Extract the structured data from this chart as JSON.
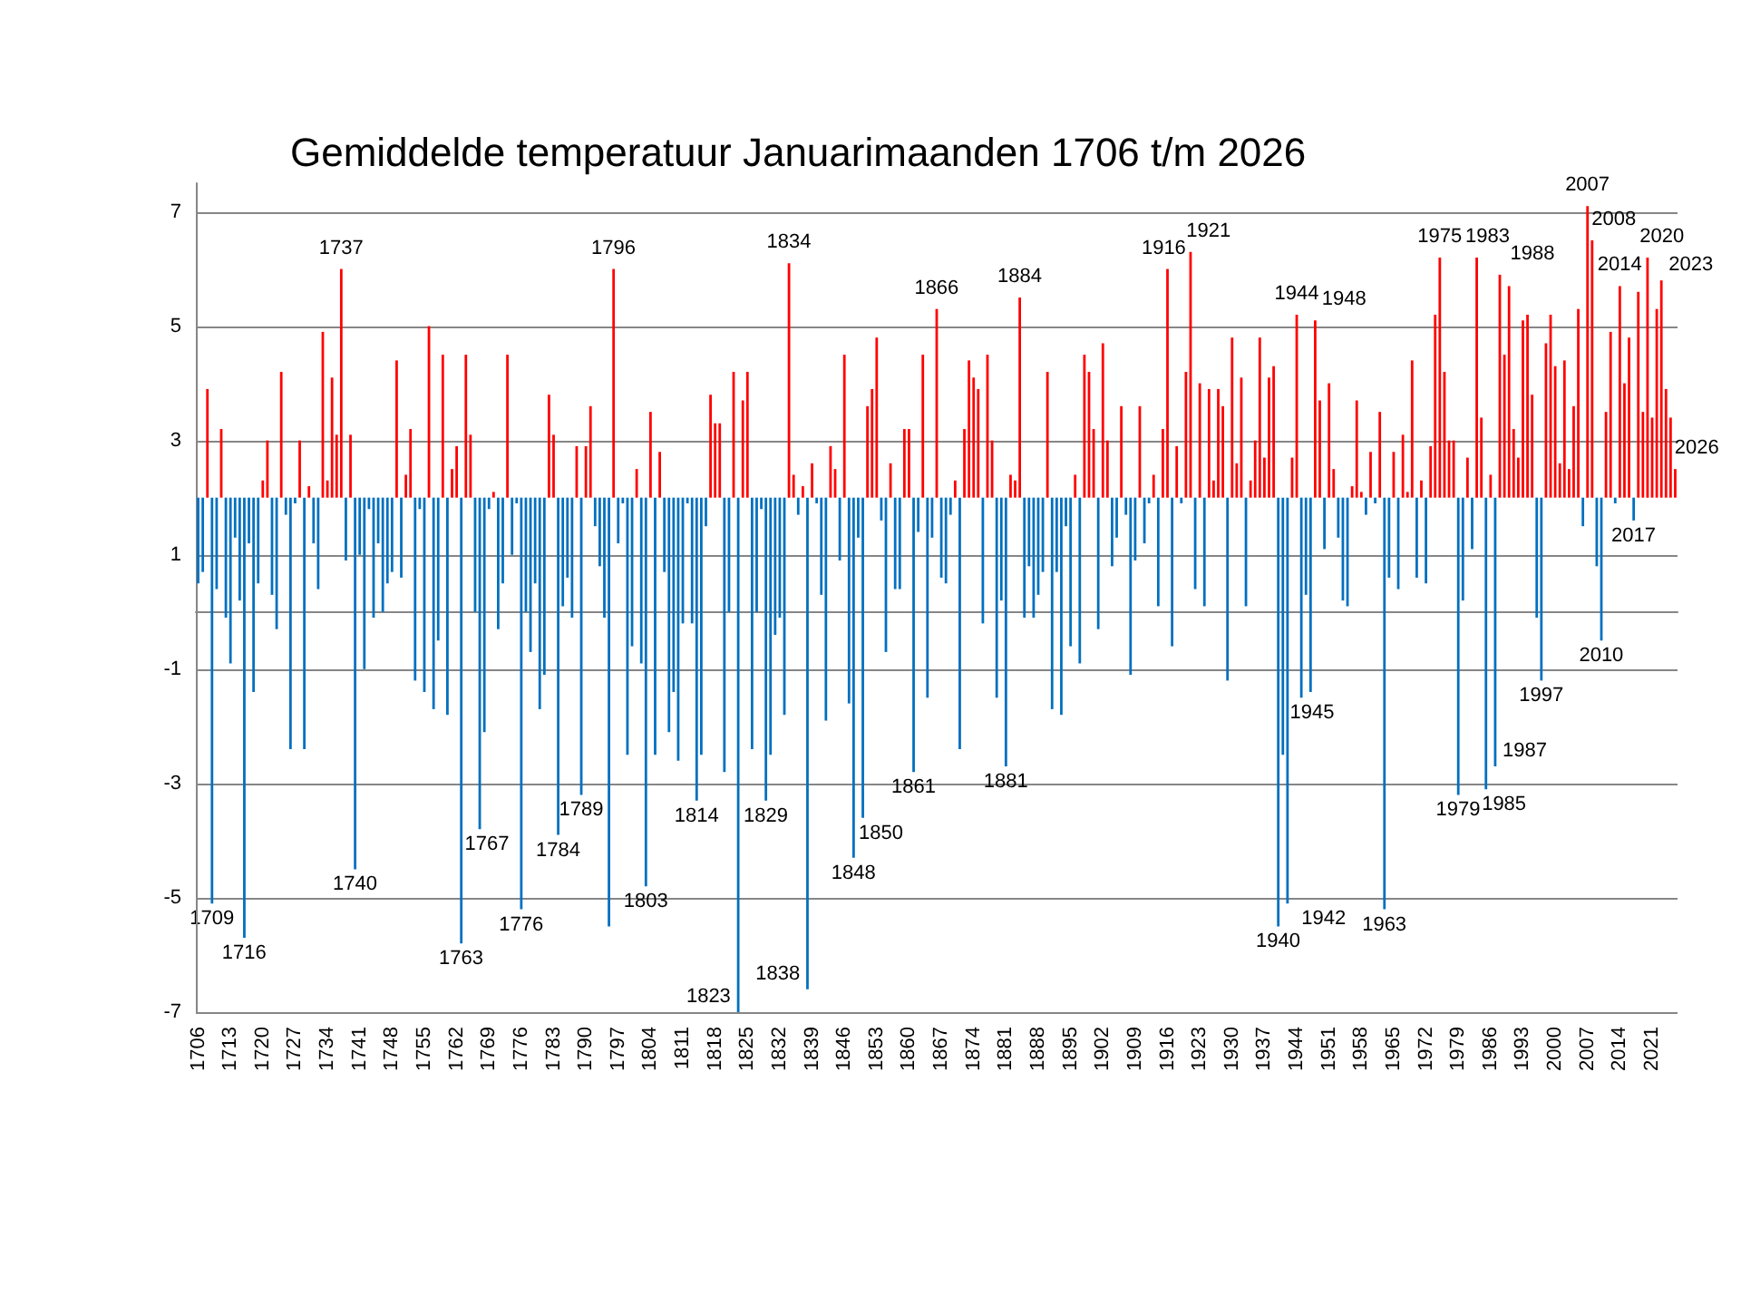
{
  "chart_data": {
    "type": "bar",
    "title": "Gemiddelde temperatuur Januarimaanden 1706 t/m 2026",
    "x": [
      1706,
      1707,
      1708,
      1709,
      1710,
      1711,
      1712,
      1713,
      1714,
      1715,
      1716,
      1717,
      1718,
      1719,
      1720,
      1721,
      1722,
      1723,
      1724,
      1725,
      1726,
      1727,
      1728,
      1729,
      1730,
      1731,
      1732,
      1733,
      1734,
      1735,
      1736,
      1737,
      1738,
      1739,
      1740,
      1741,
      1742,
      1743,
      1744,
      1745,
      1746,
      1747,
      1748,
      1749,
      1750,
      1751,
      1752,
      1753,
      1754,
      1755,
      1756,
      1757,
      1758,
      1759,
      1760,
      1761,
      1762,
      1763,
      1764,
      1765,
      1766,
      1767,
      1768,
      1769,
      1770,
      1771,
      1772,
      1773,
      1774,
      1775,
      1776,
      1777,
      1778,
      1779,
      1780,
      1781,
      1782,
      1783,
      1784,
      1785,
      1786,
      1787,
      1788,
      1789,
      1790,
      1791,
      1792,
      1793,
      1794,
      1795,
      1796,
      1797,
      1798,
      1799,
      1800,
      1801,
      1802,
      1803,
      1804,
      1805,
      1806,
      1807,
      1808,
      1809,
      1810,
      1811,
      1812,
      1813,
      1814,
      1815,
      1816,
      1817,
      1818,
      1819,
      1820,
      1821,
      1822,
      1823,
      1824,
      1825,
      1826,
      1827,
      1828,
      1829,
      1830,
      1831,
      1832,
      1833,
      1834,
      1835,
      1836,
      1837,
      1838,
      1839,
      1840,
      1841,
      1842,
      1843,
      1844,
      1845,
      1846,
      1847,
      1848,
      1849,
      1850,
      1851,
      1852,
      1853,
      1854,
      1855,
      1856,
      1857,
      1858,
      1859,
      1860,
      1861,
      1862,
      1863,
      1864,
      1865,
      1866,
      1867,
      1868,
      1869,
      1870,
      1871,
      1872,
      1873,
      1874,
      1875,
      1876,
      1877,
      1878,
      1879,
      1880,
      1881,
      1882,
      1883,
      1884,
      1885,
      1886,
      1887,
      1888,
      1889,
      1890,
      1891,
      1892,
      1893,
      1894,
      1895,
      1896,
      1897,
      1898,
      1899,
      1900,
      1901,
      1902,
      1903,
      1904,
      1905,
      1906,
      1907,
      1908,
      1909,
      1910,
      1911,
      1912,
      1913,
      1914,
      1915,
      1916,
      1917,
      1918,
      1919,
      1920,
      1921,
      1922,
      1923,
      1924,
      1925,
      1926,
      1927,
      1928,
      1929,
      1930,
      1931,
      1932,
      1933,
      1934,
      1935,
      1936,
      1937,
      1938,
      1939,
      1940,
      1941,
      1942,
      1943,
      1944,
      1945,
      1946,
      1947,
      1948,
      1949,
      1950,
      1951,
      1952,
      1953,
      1954,
      1955,
      1956,
      1957,
      1958,
      1959,
      1960,
      1961,
      1962,
      1963,
      1964,
      1965,
      1966,
      1967,
      1968,
      1969,
      1970,
      1971,
      1972,
      1973,
      1974,
      1975,
      1976,
      1977,
      1978,
      1979,
      1980,
      1981,
      1982,
      1983,
      1984,
      1985,
      1986,
      1987,
      1988,
      1989,
      1990,
      1991,
      1992,
      1993,
      1994,
      1995,
      1996,
      1997,
      1998,
      1999,
      2000,
      2001,
      2002,
      2003,
      2004,
      2005,
      2006,
      2007,
      2008,
      2009,
      2010,
      2011,
      2012,
      2013,
      2014,
      2015,
      2016,
      2017,
      2018,
      2019,
      2020,
      2021,
      2022,
      2023,
      2024,
      2025,
      2026
    ],
    "base": [
      2,
      2,
      2,
      2,
      2,
      2,
      2,
      2,
      2,
      2,
      2,
      2,
      2,
      2,
      2,
      2,
      2,
      2,
      2,
      2,
      2,
      2,
      2,
      2,
      2,
      2,
      2,
      2,
      2,
      2,
      2,
      2,
      2,
      2,
      2,
      2,
      2,
      2,
      2,
      2,
      2,
      2,
      2,
      2,
      2,
      2,
      2,
      2,
      2,
      2,
      2,
      2,
      2,
      2,
      2,
      2,
      2,
      2,
      2,
      2,
      2,
      2,
      2,
      2,
      2,
      2,
      2,
      2,
      2,
      2,
      2,
      2,
      2,
      2,
      2,
      2,
      2,
      2,
      2,
      2,
      2,
      2,
      2,
      2,
      2,
      2,
      2,
      2,
      2,
      2,
      2,
      2,
      2,
      2,
      2,
      2,
      2,
      2,
      2,
      2,
      2,
      2,
      2,
      2,
      2,
      2,
      2,
      2,
      2,
      2,
      2,
      2,
      2,
      2,
      2,
      2,
      2,
      2,
      2,
      2,
      2,
      2,
      2,
      2,
      2,
      2,
      2,
      2,
      2,
      2,
      2,
      2,
      2,
      2,
      2,
      2,
      2,
      2,
      2,
      2,
      2,
      2,
      2,
      2,
      2,
      2,
      2,
      2,
      2,
      2,
      2,
      2,
      2,
      2,
      2,
      2,
      2,
      2,
      2,
      2,
      2,
      2,
      2,
      2,
      2,
      2,
      2,
      2,
      2,
      2,
      2,
      2,
      2,
      2,
      2,
      2,
      2,
      2,
      2,
      2,
      2,
      2,
      2,
      2,
      2,
      2,
      2,
      2,
      2,
      2,
      2,
      2,
      2,
      2,
      2,
      2,
      2,
      2,
      2,
      2,
      2,
      2,
      2,
      2,
      2,
      2,
      2,
      2,
      2,
      2,
      2,
      2,
      2,
      2,
      2,
      2,
      2,
      2,
      2,
      2,
      2,
      2,
      2,
      2,
      2,
      2,
      2,
      2,
      2,
      2,
      2,
      2,
      2,
      2,
      2,
      2,
      2,
      2,
      2,
      2,
      2,
      2,
      2,
      2,
      2,
      2,
      2,
      2,
      2,
      2,
      2,
      2,
      2,
      2,
      2,
      2,
      2,
      2,
      2,
      2,
      2,
      2,
      2,
      2,
      2,
      2,
      2,
      2,
      2,
      2,
      2,
      2,
      2,
      2,
      2,
      2,
      2,
      2,
      2,
      2,
      2,
      2,
      2,
      2,
      2,
      2,
      2,
      2,
      2,
      2,
      2,
      2,
      2,
      2,
      2,
      2,
      2,
      2,
      2,
      2,
      2,
      2,
      2,
      2,
      2,
      2,
      2,
      2,
      2,
      2,
      2,
      2,
      2,
      2,
      2,
      2,
      2,
      2,
      2,
      2,
      2
    ],
    "values": [
      -1.5,
      -1.3,
      1.9,
      -7.1,
      -1.6,
      1.2,
      -2.1,
      -2.9,
      -0.7,
      -1.8,
      -7.7,
      -0.8,
      -3.4,
      -1.5,
      0.3,
      1.0,
      -1.7,
      -2.3,
      2.2,
      -0.3,
      -4.4,
      -0.1,
      1.0,
      -4.4,
      0.2,
      -0.8,
      -1.6,
      2.9,
      0.3,
      2.1,
      1.1,
      4.0,
      -1.1,
      1.1,
      -6.5,
      -1.0,
      -3.0,
      -0.2,
      -2.1,
      -0.8,
      -2.0,
      -1.5,
      -1.3,
      2.4,
      -1.4,
      0.4,
      1.2,
      -3.2,
      -0.2,
      -3.4,
      3.0,
      -3.7,
      -2.5,
      2.5,
      -3.8,
      0.5,
      0.9,
      -7.8,
      2.5,
      1.1,
      -2.0,
      -5.8,
      -4.1,
      -0.2,
      0.1,
      -2.3,
      -1.5,
      2.5,
      -1.0,
      -0.1,
      -7.2,
      -2.0,
      -2.7,
      -1.5,
      -3.7,
      -3.1,
      1.8,
      1.1,
      -5.9,
      -1.9,
      -1.4,
      -2.1,
      0.9,
      -5.2,
      0.9,
      1.6,
      -0.5,
      -1.2,
      -2.1,
      -7.5,
      4.0,
      -0.8,
      -0.1,
      -4.5,
      -2.6,
      0.5,
      -2.9,
      -6.8,
      1.5,
      -4.5,
      0.8,
      -1.3,
      -4.1,
      -3.4,
      -4.6,
      -2.2,
      -0.1,
      -2.2,
      -5.3,
      -4.5,
      -0.5,
      1.8,
      1.3,
      1.3,
      -4.8,
      -2.0,
      2.2,
      -9.0,
      1.7,
      2.2,
      -4.4,
      -2.0,
      -0.2,
      -5.3,
      -4.5,
      -2.4,
      -2.1,
      -3.8,
      4.1,
      0.4,
      -0.3,
      0.2,
      -8.6,
      0.6,
      -0.1,
      -1.7,
      -3.9,
      0.9,
      0.5,
      -1.1,
      2.5,
      -3.6,
      -6.3,
      -0.7,
      -5.6,
      1.6,
      1.9,
      2.8,
      -0.4,
      -2.7,
      0.6,
      -1.6,
      -1.6,
      1.2,
      1.2,
      -4.8,
      -0.6,
      2.5,
      -3.5,
      -0.7,
      3.3,
      -1.4,
      -1.5,
      -0.3,
      0.3,
      -4.4,
      1.2,
      2.4,
      2.1,
      1.9,
      -2.2,
      2.5,
      1.0,
      -3.5,
      -1.8,
      -4.7,
      0.4,
      0.3,
      3.5,
      -2.1,
      -1.2,
      -2.1,
      -1.7,
      -1.3,
      2.2,
      -3.7,
      -1.3,
      -3.8,
      -0.5,
      -2.6,
      0.4,
      -2.9,
      2.5,
      2.2,
      1.2,
      -2.3,
      2.7,
      1.0,
      -1.2,
      -0.7,
      1.6,
      -0.3,
      -3.1,
      -1.1,
      1.6,
      -0.8,
      -0.1,
      0.4,
      -1.9,
      1.2,
      4.0,
      -2.6,
      0.9,
      -0.1,
      2.2,
      4.3,
      -1.6,
      2.0,
      -1.9,
      1.9,
      0.3,
      1.9,
      1.6,
      -3.2,
      2.8,
      0.6,
      2.1,
      -1.9,
      0.3,
      1.0,
      2.8,
      0.7,
      2.1,
      2.3,
      -7.5,
      -4.5,
      -7.1,
      0.7,
      3.2,
      -3.5,
      -1.7,
      -3.4,
      3.1,
      1.7,
      -0.9,
      2.0,
      0.5,
      -0.7,
      -1.8,
      -1.9,
      0.2,
      1.7,
      0.1,
      -0.3,
      0.8,
      -0.1,
      1.5,
      -7.2,
      -1.4,
      0.8,
      -1.6,
      1.1,
      0.1,
      2.4,
      -1.4,
      0.3,
      -1.5,
      0.9,
      3.2,
      4.2,
      2.2,
      1.0,
      1.0,
      -5.2,
      -1.8,
      0.7,
      -0.9,
      4.2,
      1.4,
      -5.1,
      0.4,
      -4.7,
      3.9,
      2.5,
      3.7,
      1.2,
      0.7,
      3.1,
      3.2,
      1.8,
      -2.1,
      -3.2,
      2.7,
      3.2,
      2.3,
      0.6,
      2.4,
      0.5,
      1.6,
      3.3,
      -0.5,
      5.1,
      4.5,
      -1.2,
      -2.5,
      1.5,
      2.9,
      -0.1,
      3.7,
      2.0,
      2.8,
      -0.4,
      3.6,
      1.5,
      4.2,
      1.4,
      3.3,
      3.8,
      1.9,
      1.4,
      0.5
    ],
    "colors": [
      "#0070c0",
      "#0070c0",
      "#ff0000",
      "#0070c0",
      "#0070c0",
      "#ff0000",
      "#0070c0",
      "#0070c0",
      "#0070c0",
      "#0070c0",
      "#0070c0",
      "#0070c0",
      "#0070c0",
      "#0070c0",
      "#ff0000",
      "#ff0000",
      "#0070c0",
      "#0070c0",
      "#ff0000",
      "#0070c0",
      "#0070c0",
      "#0070c0",
      "#ff0000",
      "#0070c0",
      "#ff0000",
      "#0070c0",
      "#0070c0",
      "#ff0000",
      "#ff0000",
      "#ff0000",
      "#ff0000",
      "#ff0000",
      "#0070c0",
      "#ff0000",
      "#0070c0",
      "#0070c0",
      "#0070c0",
      "#0070c0",
      "#0070c0",
      "#0070c0",
      "#0070c0",
      "#0070c0",
      "#0070c0",
      "#ff0000",
      "#0070c0",
      "#ff0000",
      "#ff0000",
      "#0070c0",
      "#0070c0",
      "#0070c0",
      "#ff0000",
      "#0070c0",
      "#0070c0",
      "#ff0000",
      "#0070c0",
      "#ff0000",
      "#ff0000",
      "#0070c0",
      "#ff0000",
      "#ff0000",
      "#0070c0",
      "#0070c0",
      "#0070c0",
      "#0070c0",
      "#ff0000",
      "#0070c0",
      "#0070c0",
      "#ff0000",
      "#0070c0",
      "#0070c0",
      "#0070c0",
      "#0070c0",
      "#0070c0",
      "#0070c0",
      "#0070c0",
      "#0070c0",
      "#ff0000",
      "#ff0000",
      "#0070c0",
      "#0070c0",
      "#0070c0",
      "#0070c0",
      "#ff0000",
      "#0070c0",
      "#ff0000",
      "#ff0000",
      "#0070c0",
      "#0070c0",
      "#0070c0",
      "#0070c0",
      "#ff0000",
      "#0070c0",
      "#0070c0",
      "#0070c0",
      "#0070c0",
      "#ff0000",
      "#0070c0",
      "#0070c0",
      "#ff0000",
      "#0070c0",
      "#ff0000",
      "#0070c0",
      "#0070c0",
      "#0070c0",
      "#0070c0",
      "#0070c0",
      "#0070c0",
      "#0070c0",
      "#0070c0",
      "#0070c0",
      "#0070c0",
      "#ff0000",
      "#ff0000",
      "#ff0000",
      "#0070c0",
      "#0070c0",
      "#ff0000",
      "#0070c0",
      "#ff0000",
      "#ff0000",
      "#0070c0",
      "#0070c0",
      "#0070c0",
      "#0070c0",
      "#0070c0",
      "#0070c0",
      "#0070c0",
      "#0070c0",
      "#ff0000",
      "#ff0000",
      "#0070c0",
      "#ff0000",
      "#0070c0",
      "#ff0000",
      "#0070c0",
      "#0070c0",
      "#0070c0",
      "#ff0000",
      "#ff0000",
      "#0070c0",
      "#ff0000",
      "#0070c0",
      "#0070c0",
      "#0070c0",
      "#0070c0",
      "#ff0000",
      "#ff0000",
      "#ff0000",
      "#0070c0",
      "#0070c0",
      "#ff0000",
      "#0070c0",
      "#0070c0",
      "#ff0000",
      "#ff0000",
      "#0070c0",
      "#0070c0",
      "#ff0000",
      "#0070c0",
      "#0070c0",
      "#ff0000",
      "#0070c0",
      "#0070c0",
      "#0070c0",
      "#ff0000",
      "#0070c0",
      "#ff0000",
      "#ff0000",
      "#ff0000",
      "#ff0000",
      "#0070c0",
      "#ff0000",
      "#ff0000",
      "#0070c0",
      "#0070c0",
      "#0070c0",
      "#ff0000",
      "#ff0000",
      "#ff0000",
      "#0070c0",
      "#0070c0",
      "#0070c0",
      "#0070c0",
      "#0070c0",
      "#ff0000",
      "#0070c0",
      "#0070c0",
      "#0070c0",
      "#0070c0",
      "#0070c0",
      "#ff0000",
      "#0070c0",
      "#ff0000",
      "#ff0000",
      "#ff0000",
      "#0070c0",
      "#ff0000",
      "#ff0000",
      "#0070c0",
      "#0070c0",
      "#ff0000",
      "#0070c0",
      "#0070c0",
      "#0070c0",
      "#ff0000",
      "#0070c0",
      "#0070c0",
      "#ff0000",
      "#0070c0",
      "#ff0000",
      "#ff0000",
      "#0070c0",
      "#ff0000",
      "#0070c0",
      "#ff0000",
      "#ff0000",
      "#0070c0",
      "#ff0000",
      "#0070c0",
      "#ff0000",
      "#ff0000",
      "#ff0000",
      "#ff0000",
      "#0070c0",
      "#ff0000",
      "#ff0000",
      "#ff0000",
      "#0070c0",
      "#ff0000",
      "#ff0000",
      "#ff0000",
      "#ff0000",
      "#ff0000",
      "#ff0000",
      "#0070c0",
      "#0070c0",
      "#0070c0",
      "#ff0000",
      "#ff0000",
      "#0070c0",
      "#0070c0",
      "#0070c0",
      "#ff0000",
      "#ff0000",
      "#0070c0",
      "#ff0000",
      "#ff0000",
      "#0070c0",
      "#0070c0",
      "#0070c0",
      "#ff0000",
      "#ff0000",
      "#ff0000",
      "#0070c0",
      "#ff0000",
      "#0070c0",
      "#ff0000",
      "#0070c0",
      "#0070c0",
      "#ff0000",
      "#0070c0",
      "#ff0000",
      "#ff0000",
      "#ff0000",
      "#0070c0",
      "#ff0000",
      "#0070c0",
      "#ff0000",
      "#ff0000",
      "#ff0000",
      "#ff0000",
      "#ff0000",
      "#ff0000",
      "#0070c0",
      "#0070c0",
      "#ff0000",
      "#0070c0",
      "#ff0000",
      "#ff0000",
      "#0070c0",
      "#ff0000",
      "#0070c0",
      "#ff0000",
      "#ff0000",
      "#ff0000",
      "#ff0000",
      "#ff0000",
      "#ff0000",
      "#ff0000",
      "#ff0000",
      "#0070c0",
      "#0070c0",
      "#ff0000",
      "#ff0000",
      "#ff0000",
      "#ff0000",
      "#ff0000",
      "#ff0000",
      "#ff0000",
      "#ff0000",
      "#0070c0",
      "#ff0000",
      "#ff0000",
      "#0070c0",
      "#0070c0",
      "#ff0000",
      "#ff0000",
      "#0070c0",
      "#ff0000",
      "#ff0000",
      "#ff0000",
      "#0070c0",
      "#ff0000",
      "#ff0000",
      "#ff0000",
      "#ff0000",
      "#ff0000",
      "#ff0000",
      "#ff0000",
      "#ff0000",
      "#ff0000"
    ],
    "xlim": [
      1705.5,
      2026.5
    ],
    "xticks": [
      1706,
      1713,
      1720,
      1727,
      1734,
      1741,
      1748,
      1755,
      1762,
      1769,
      1776,
      1783,
      1790,
      1797,
      1804,
      1811,
      1818,
      1825,
      1832,
      1839,
      1846,
      1853,
      1860,
      1867,
      1874,
      1881,
      1888,
      1895,
      1902,
      1909,
      1916,
      1923,
      1930,
      1937,
      1944,
      1951,
      1958,
      1965,
      1972,
      1979,
      1986,
      1993,
      2000,
      2007,
      2014,
      2021
    ],
    "ylim": [
      -7,
      7.5
    ],
    "yticks": [
      -7,
      -5,
      -3,
      -1,
      1,
      3,
      5,
      7
    ],
    "grid": "y",
    "annotations": [
      {
        "text": "1709",
        "x": 1709,
        "y": -5.1
      },
      {
        "text": "1716",
        "x": 1716,
        "y": -5.7
      },
      {
        "text": "1737",
        "x": 1737,
        "y": 6.0
      },
      {
        "text": "1740",
        "x": 1740,
        "y": -4.5
      },
      {
        "text": "1763",
        "x": 1763,
        "y": -5.8
      },
      {
        "text": "1767",
        "x": 1767,
        "y": -3.8
      },
      {
        "text": "1776",
        "x": 1776,
        "y": -5.2
      },
      {
        "text": "1784",
        "x": 1784,
        "y": -3.9
      },
      {
        "text": "1789",
        "x": 1789,
        "y": -3.2
      },
      {
        "text": "1796",
        "x": 1796,
        "y": 6.0
      },
      {
        "text": "1803",
        "x": 1803,
        "y": -4.8
      },
      {
        "text": "1814",
        "x": 1814,
        "y": -3.3
      },
      {
        "text": "1823",
        "x": 1823,
        "y": -7.0
      },
      {
        "text": "1829",
        "x": 1829,
        "y": -3.3
      },
      {
        "text": "1834",
        "x": 1834,
        "y": 6.1
      },
      {
        "text": "1838",
        "x": 1838,
        "y": -6.6
      },
      {
        "text": "1848",
        "x": 1848,
        "y": -4.3
      },
      {
        "text": "1850",
        "x": 1850,
        "y": -3.6
      },
      {
        "text": "1861",
        "x": 1861,
        "y": -2.8
      },
      {
        "text": "1866",
        "x": 1866,
        "y": 5.3
      },
      {
        "text": "1881",
        "x": 1881,
        "y": -2.7
      },
      {
        "text": "1884",
        "x": 1884,
        "y": 5.5
      },
      {
        "text": "1916",
        "x": 1916,
        "y": 6.0
      },
      {
        "text": "1921",
        "x": 1921,
        "y": 6.3
      },
      {
        "text": "1940",
        "x": 1940,
        "y": -5.5
      },
      {
        "text": "1942",
        "x": 1942,
        "y": -5.1
      },
      {
        "text": "1944",
        "x": 1944,
        "y": 5.2
      },
      {
        "text": "1945",
        "x": 1945,
        "y": -1.5
      },
      {
        "text": "1948",
        "x": 1948,
        "y": 5.1
      },
      {
        "text": "1963",
        "x": 1963,
        "y": -5.2
      },
      {
        "text": "1975",
        "x": 1975,
        "y": 6.2
      },
      {
        "text": "1979",
        "x": 1979,
        "y": -3.2
      },
      {
        "text": "1983",
        "x": 1983,
        "y": 6.2
      },
      {
        "text": "1985",
        "x": 1985,
        "y": -3.1
      },
      {
        "text": "1987",
        "x": 1987,
        "y": -2.7
      },
      {
        "text": "1988",
        "x": 1988,
        "y": 5.9
      },
      {
        "text": "1997",
        "x": 1997,
        "y": -1.2
      },
      {
        "text": "2007",
        "x": 2007,
        "y": 7.1
      },
      {
        "text": "2008",
        "x": 2008,
        "y": 6.5
      },
      {
        "text": "2010",
        "x": 2010,
        "y": -0.5
      },
      {
        "text": "2014",
        "x": 2014,
        "y": 5.7
      },
      {
        "text": "2017",
        "x": 2017,
        "y": 1.6
      },
      {
        "text": "2020",
        "x": 2020,
        "y": 6.2
      },
      {
        "text": "2023",
        "x": 2023,
        "y": 5.8
      },
      {
        "text": "2026",
        "x": 2026,
        "y": 2.5
      }
    ]
  }
}
